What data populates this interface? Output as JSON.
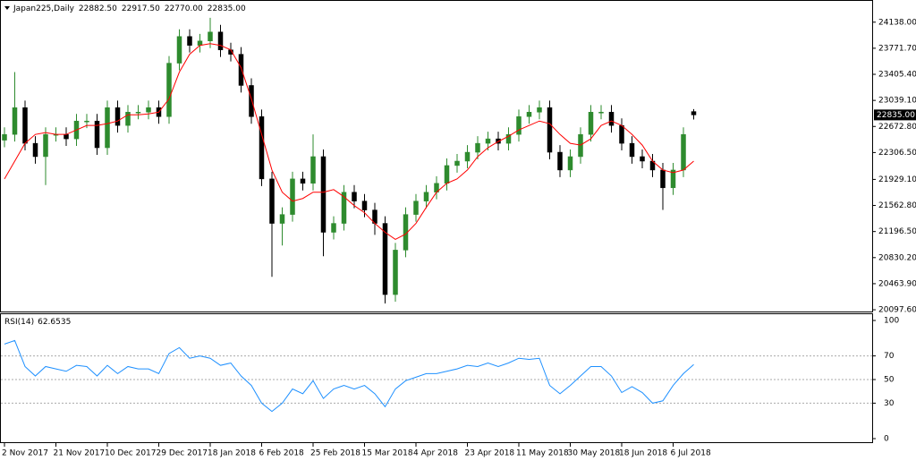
{
  "chart_data": [
    {
      "type": "candlestick",
      "title": "Japan225,Daily",
      "header_values": [
        "22882.50",
        "22917.50",
        "22770.00",
        "22835.00"
      ],
      "open": [
        22480,
        22561,
        22937,
        22436,
        22249,
        22561,
        22561,
        22499,
        22749,
        22749,
        22374,
        22937,
        22687,
        22874,
        22874,
        22937,
        22811,
        23562,
        23937,
        23812,
        23874,
        24000,
        23749,
        23687,
        23249,
        22811,
        21936,
        21311,
        21436,
        21936,
        21874,
        22249,
        21186,
        21311,
        21749,
        21624,
        21499,
        21311,
        20311,
        20936,
        21436,
        21624,
        21749,
        21874,
        22124,
        22186,
        22311,
        22436,
        22499,
        22436,
        22561,
        22811,
        22874,
        22937,
        22311,
        22061,
        22249,
        22561,
        22874,
        22874,
        22687,
        22436,
        22249,
        22186,
        22061,
        21811,
        22061,
        22882.5
      ],
      "high": [
        22661,
        23437,
        23037,
        22536,
        22661,
        22661,
        22661,
        22849,
        22849,
        22849,
        23037,
        23037,
        22974,
        22974,
        23037,
        23037,
        23662,
        24037,
        24037,
        23974,
        24200,
        24100,
        23849,
        23787,
        23349,
        22911,
        22036,
        21536,
        22036,
        22036,
        22561,
        22349,
        21411,
        21849,
        21849,
        21724,
        21599,
        21411,
        21036,
        21536,
        21724,
        21849,
        21974,
        22224,
        22286,
        22411,
        22536,
        22599,
        22599,
        22661,
        22911,
        22974,
        23037,
        23037,
        22411,
        22349,
        22661,
        22974,
        22974,
        22974,
        22787,
        22536,
        22349,
        22286,
        22161,
        22161,
        22661,
        22917.5
      ],
      "low": [
        22380,
        22461,
        22336,
        22149,
        21850,
        22461,
        22399,
        22399,
        22649,
        22274,
        22274,
        22587,
        22587,
        22774,
        22774,
        22711,
        22711,
        23462,
        23712,
        23712,
        23774,
        23649,
        23587,
        23149,
        22711,
        21836,
        20561,
        21000,
        21336,
        21774,
        21774,
        20850,
        21086,
        21211,
        21524,
        21399,
        21150,
        20186,
        20211,
        20836,
        21336,
        21524,
        21649,
        21774,
        22024,
        22086,
        22211,
        22336,
        22336,
        22336,
        22461,
        22711,
        22774,
        22211,
        21961,
        21961,
        22149,
        22461,
        22774,
        22587,
        22336,
        22149,
        22086,
        21961,
        21500,
        21711,
        21961,
        22770
      ],
      "close": [
        22561,
        22937,
        22436,
        22249,
        22561,
        22561,
        22499,
        22749,
        22749,
        22374,
        22937,
        22687,
        22874,
        22874,
        22937,
        22811,
        23562,
        23937,
        23812,
        23874,
        24000,
        23749,
        23687,
        23249,
        22811,
        21936,
        21311,
        21436,
        21936,
        21874,
        22249,
        21186,
        21311,
        21749,
        21624,
        21499,
        21311,
        20311,
        20936,
        21436,
        21624,
        21749,
        21874,
        22124,
        22186,
        22311,
        22436,
        22499,
        22436,
        22561,
        22811,
        22874,
        22937,
        22311,
        22061,
        22249,
        22561,
        22874,
        22874,
        22687,
        22436,
        22249,
        22186,
        22061,
        21811,
        22061,
        22561,
        22835
      ],
      "ma_values": [
        21936,
        22186,
        22436,
        22561,
        22586,
        22561,
        22561,
        22624,
        22687,
        22687,
        22712,
        22749,
        22837,
        22837,
        22849,
        22874,
        23061,
        23437,
        23687,
        23812,
        23837,
        23812,
        23749,
        23499,
        23061,
        22561,
        22061,
        21749,
        21624,
        21661,
        21749,
        21749,
        21786,
        21686,
        21561,
        21461,
        21311,
        21186,
        21086,
        21161,
        21311,
        21536,
        21749,
        21874,
        21936,
        22061,
        22249,
        22374,
        22461,
        22536,
        22624,
        22687,
        22749,
        22712,
        22561,
        22436,
        22411,
        22499,
        22687,
        22749,
        22687,
        22561,
        22411,
        22186,
        22061,
        22024,
        22061,
        22186
      ],
      "ma_color": "#ff0000",
      "bull_color": "#2e8b2e",
      "bear_color": "#000000",
      "ylim": [
        20073,
        24437
      ],
      "yticks": [
        {
          "value": 24138,
          "label": "24138.00"
        },
        {
          "value": 23771.7,
          "label": "23771.70"
        },
        {
          "value": 23405.4,
          "label": "23405.40"
        },
        {
          "value": 23039.1,
          "label": "23039.10"
        },
        {
          "value": 22672.8,
          "label": "22672.80"
        },
        {
          "value": 22306.5,
          "label": "22306.50"
        },
        {
          "value": 21929.1,
          "label": "21929.10"
        },
        {
          "value": 21562.8,
          "label": "21562.80"
        },
        {
          "value": 21196.5,
          "label": "21196.50"
        },
        {
          "value": 20830.2,
          "label": "20830.20"
        },
        {
          "value": 20463.9,
          "label": "20463.90"
        },
        {
          "value": 20097.6,
          "label": "20097.60"
        }
      ],
      "last_price": {
        "value": 22835,
        "label": "22835.00"
      },
      "xticks": [
        {
          "value": 0,
          "label": "2 Nov 2017"
        },
        {
          "value": 5,
          "label": "21 Nov 2017"
        },
        {
          "value": 10,
          "label": "10 Dec 2017"
        },
        {
          "value": 15,
          "label": "29 Dec 2017"
        },
        {
          "value": 20,
          "label": "18 Jan 2018"
        },
        {
          "value": 25,
          "label": "6 Feb 2018"
        },
        {
          "value": 30,
          "label": "25 Feb 2018"
        },
        {
          "value": 35,
          "label": "15 Mar 2018"
        },
        {
          "value": 40,
          "label": "4 Apr 2018"
        },
        {
          "value": 45,
          "label": "23 Apr 2018"
        },
        {
          "value": 50,
          "label": "11 May 2018"
        },
        {
          "value": 55,
          "label": "30 May 2018"
        },
        {
          "value": 60,
          "label": "18 Jun 2018"
        },
        {
          "value": 65,
          "label": "6 Jul 2018"
        }
      ]
    },
    {
      "type": "line",
      "title": "RSI(14)",
      "values": [
        80,
        83,
        61,
        53,
        61,
        59,
        57,
        62,
        61,
        53,
        62,
        55,
        61,
        59,
        59,
        55,
        72,
        77,
        68,
        70,
        68,
        62,
        64,
        53,
        45,
        30,
        23,
        30,
        42,
        38,
        49,
        34,
        42,
        45,
        42,
        45,
        38,
        27,
        42,
        49,
        52,
        55,
        55,
        57,
        59,
        62,
        61,
        64,
        61,
        64,
        68,
        67,
        68,
        45,
        38,
        45,
        53,
        61,
        61,
        53,
        39,
        44,
        39,
        30,
        32,
        45,
        55,
        62.6535
      ],
      "color": "#1e90ff",
      "ylim": [
        -3.8,
        105.3
      ],
      "yticks": [
        100,
        70,
        50,
        30,
        0
      ],
      "levels": [
        70,
        50,
        30
      ]
    }
  ]
}
